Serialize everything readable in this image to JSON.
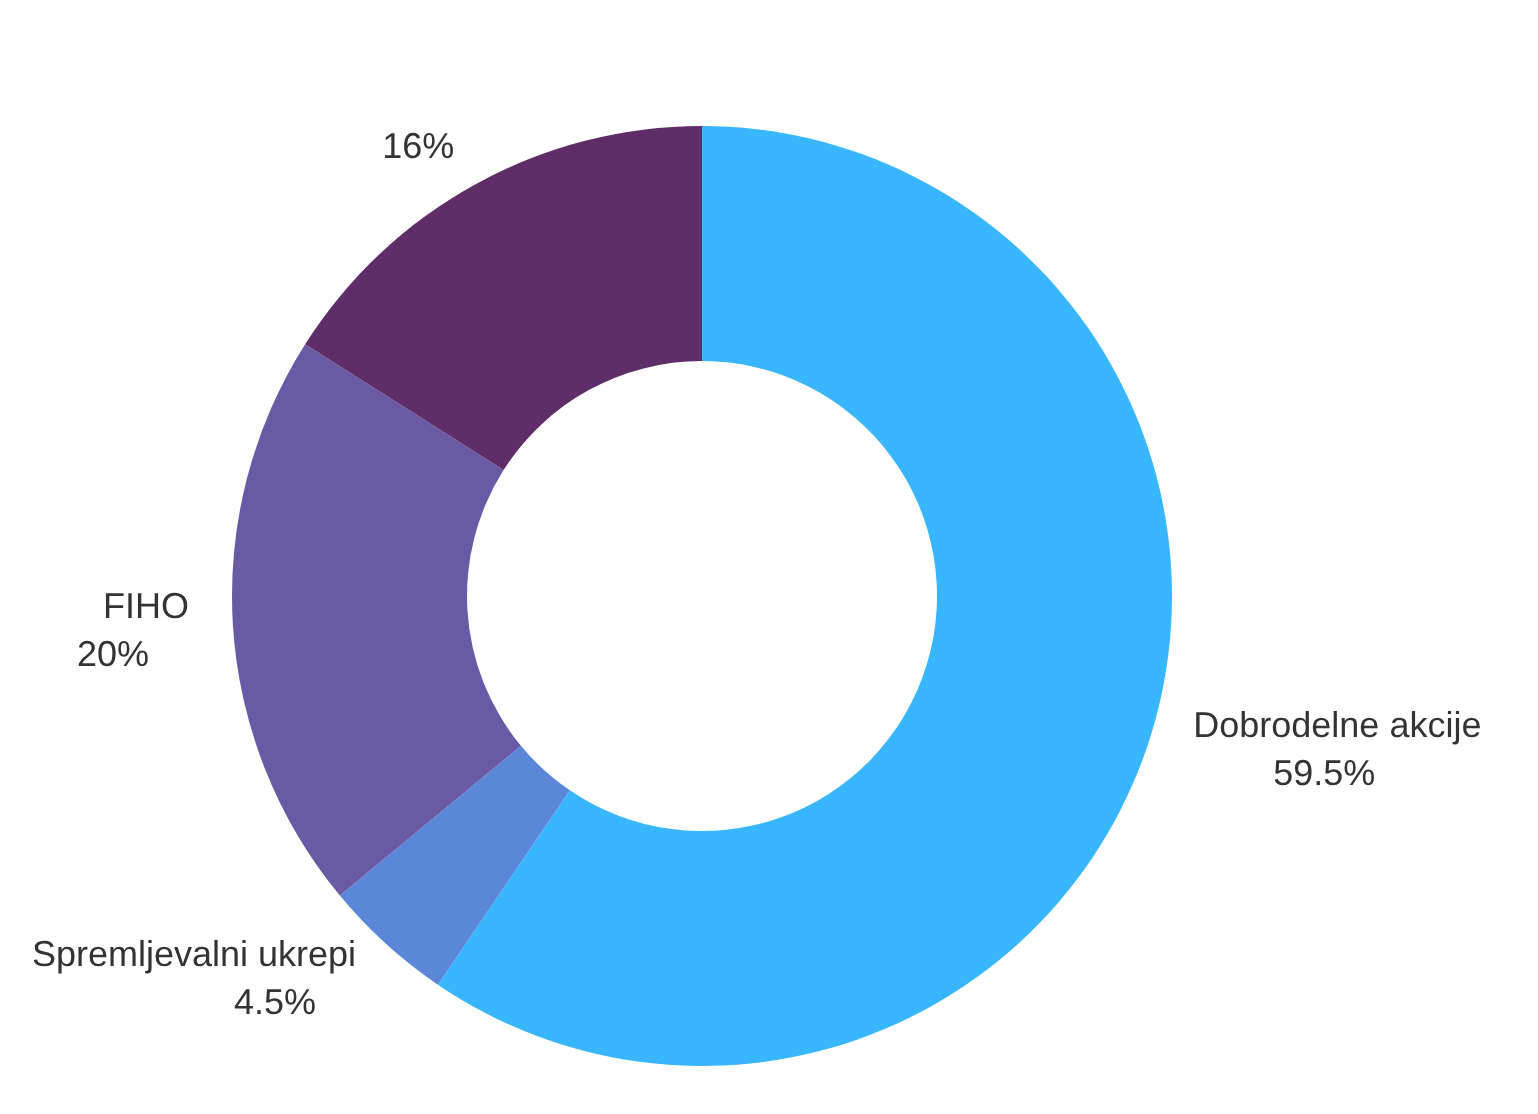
{
  "chart_data": {
    "type": "donut",
    "categories": [
      "Dobrodelne akcije",
      "Spremljevalni ukrepi",
      "FIHO",
      null
    ],
    "values": [
      59.5,
      4.5,
      20,
      16
    ],
    "value_labels": [
      "59.5%",
      "4.5%",
      "20%",
      "16%"
    ],
    "colors": [
      "#38b6ff",
      "#5b87d9",
      "#6a5aa5",
      "#5f2d68"
    ],
    "legend": false
  }
}
